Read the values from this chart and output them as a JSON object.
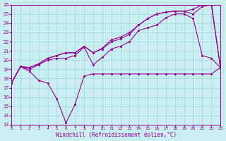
{
  "xlabel": "Windchill (Refroidissement éolien,°C)",
  "bg_color": "#c8eef0",
  "grid_color": "#a8d8dc",
  "line_color": "#990099",
  "xlim": [
    0,
    23
  ],
  "ylim": [
    13,
    26
  ],
  "xticks": [
    0,
    1,
    2,
    3,
    4,
    5,
    6,
    7,
    8,
    9,
    10,
    11,
    12,
    13,
    14,
    15,
    16,
    17,
    18,
    19,
    20,
    21,
    22,
    23
  ],
  "yticks": [
    13,
    14,
    15,
    16,
    17,
    18,
    19,
    20,
    21,
    22,
    23,
    24,
    25,
    26
  ],
  "line1_x": [
    0,
    1,
    2,
    3,
    4,
    5,
    6,
    7,
    8,
    9,
    10,
    11,
    12,
    13,
    14,
    15,
    16,
    17,
    18,
    19,
    20,
    21,
    22,
    23
  ],
  "line1_y": [
    17.5,
    19.3,
    18.8,
    17.8,
    17.5,
    15.8,
    13.2,
    15.2,
    18.3,
    18.5,
    18.5,
    18.5,
    18.5,
    18.5,
    18.5,
    18.5,
    18.5,
    18.5,
    18.5,
    18.5,
    18.5,
    18.5,
    18.5,
    19.2
  ],
  "line2_x": [
    0,
    1,
    2,
    3,
    4,
    5,
    6,
    7,
    8,
    9,
    10,
    11,
    12,
    13,
    14,
    15,
    16,
    17,
    18,
    19,
    20,
    21,
    22,
    23
  ],
  "line2_y": [
    17.5,
    19.3,
    19.0,
    19.5,
    20.0,
    20.2,
    20.2,
    20.5,
    21.4,
    19.5,
    20.3,
    21.2,
    21.5,
    22.0,
    23.2,
    23.5,
    23.8,
    24.6,
    25.0,
    25.0,
    24.5,
    20.5,
    20.2,
    19.2
  ],
  "line3_x": [
    0,
    1,
    2,
    3,
    4,
    5,
    6,
    7,
    8,
    9,
    10,
    11,
    12,
    13,
    14,
    15,
    16,
    17,
    18,
    19,
    20,
    21,
    22,
    23
  ],
  "line3_y": [
    17.5,
    19.3,
    19.2,
    19.6,
    20.2,
    20.5,
    20.8,
    20.8,
    21.5,
    20.8,
    21.2,
    22.0,
    22.3,
    22.8,
    23.8,
    24.5,
    25.0,
    25.2,
    25.3,
    25.3,
    25.0,
    25.8,
    26.0,
    19.2
  ],
  "line4_x": [
    0,
    1,
    2,
    3,
    4,
    5,
    6,
    7,
    8,
    9,
    10,
    11,
    12,
    13,
    14,
    15,
    16,
    17,
    18,
    19,
    20,
    21,
    22,
    23
  ],
  "line4_y": [
    17.5,
    19.3,
    19.2,
    19.6,
    20.2,
    20.5,
    20.8,
    20.8,
    21.5,
    20.8,
    21.3,
    22.2,
    22.5,
    23.0,
    23.8,
    24.5,
    25.0,
    25.2,
    25.3,
    25.3,
    25.5,
    26.0,
    26.2,
    19.2
  ]
}
